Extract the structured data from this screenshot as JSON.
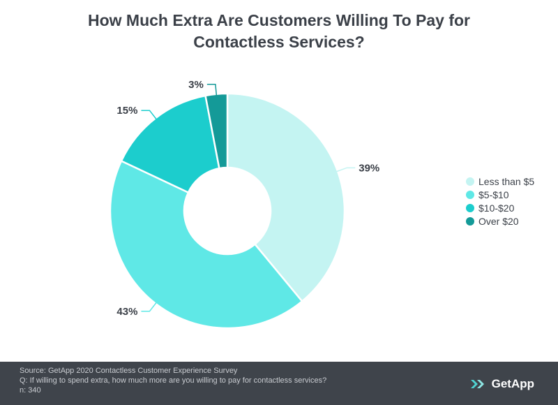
{
  "chart_data": {
    "type": "pie",
    "donut": true,
    "title": "How Much Extra Are Customers Willing To Pay for Contactless Services?",
    "categories": [
      "Less than $5",
      "$5-$10",
      "$10-$20",
      "Over $20"
    ],
    "values": [
      39,
      43,
      15,
      3
    ],
    "labels": [
      "39%",
      "43%",
      "15%",
      "3%"
    ],
    "colors": [
      "#c4f4f2",
      "#5fe8e6",
      "#1ccdcd",
      "#149a98"
    ],
    "legend_position": "right"
  },
  "footer": {
    "source": "Source: GetApp 2020 Contactless Customer Experience Survey",
    "question": "Q: If willing to spend extra, how much more are you willing to pay for contactless services?",
    "n": "n: 340",
    "brand": "GetApp"
  },
  "colors": {
    "text": "#3b4048",
    "footer_bg": "#3f444b",
    "brand_accent": "#4fd3d1"
  }
}
